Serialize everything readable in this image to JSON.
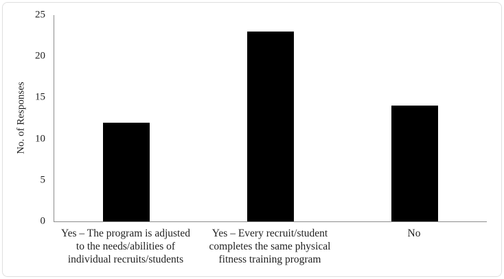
{
  "figure": {
    "background": "#ffffff",
    "frame_border_color": "#dfdfdf"
  },
  "chart_data": {
    "type": "bar",
    "title": "",
    "xlabel": "",
    "ylabel": "No. of Responses",
    "categories": [
      "Yes – The program is adjusted to the needs/abilities of individual recruits/students",
      "Yes – Every recruit/student completes the same physical fitness training program",
      "No"
    ],
    "category_lines": [
      [
        "Yes – The program is adjusted",
        "to the needs/abilities of",
        "individual recruits/students"
      ],
      [
        "Yes – Every recruit/student",
        "completes the same physical",
        "fitness training program"
      ],
      [
        "No"
      ]
    ],
    "values": [
      12,
      23,
      14
    ],
    "ylim": [
      0,
      25
    ],
    "yticks": [
      0,
      5,
      10,
      15,
      20,
      25
    ],
    "bar_color": "#000000",
    "axis_color": "#8c8c8c",
    "text_color": "#1f1f1f",
    "grid": false,
    "legend": null
  }
}
